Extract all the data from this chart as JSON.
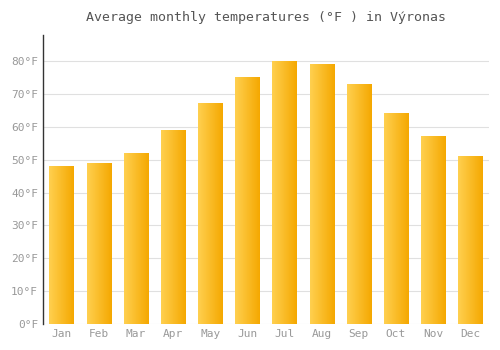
{
  "title": "Average monthly temperatures (°F ) in Výronas",
  "months": [
    "Jan",
    "Feb",
    "Mar",
    "Apr",
    "May",
    "Jun",
    "Jul",
    "Aug",
    "Sep",
    "Oct",
    "Nov",
    "Dec"
  ],
  "values": [
    48,
    49,
    52,
    59,
    67,
    75,
    80,
    79,
    73,
    64,
    57,
    51
  ],
  "bar_color_left": "#FFD050",
  "bar_color_right": "#F5A800",
  "background_color": "#FFFFFF",
  "grid_color": "#E0E0E0",
  "text_color": "#999999",
  "title_color": "#555555",
  "ylim": [
    0,
    88
  ],
  "yticks": [
    0,
    10,
    20,
    30,
    40,
    50,
    60,
    70,
    80
  ],
  "ytick_labels": [
    "0°F",
    "10°F",
    "20°F",
    "30°F",
    "40°F",
    "50°F",
    "60°F",
    "70°F",
    "80°F"
  ]
}
